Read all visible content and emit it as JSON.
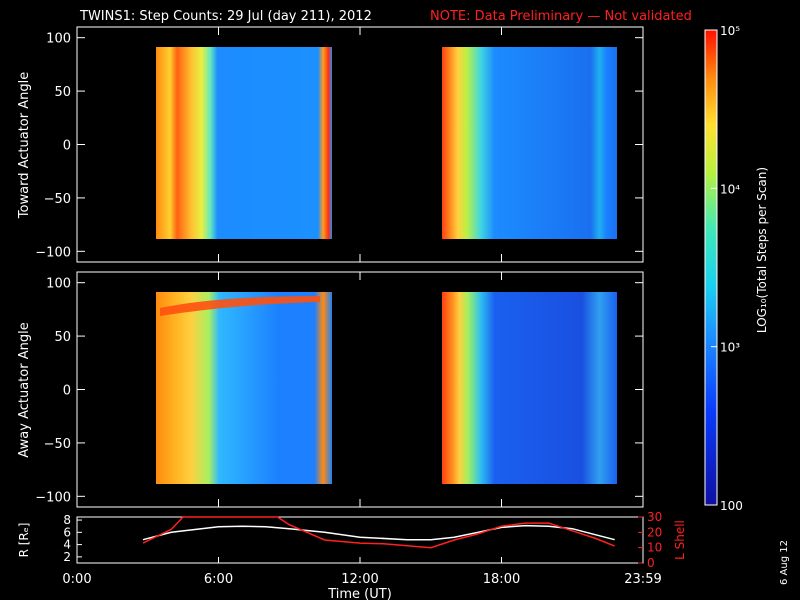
{
  "title": {
    "main": "TWINS1: Step Counts: 29 Jul (day 211), 2012",
    "note": "NOTE: Data Preliminary — Not validated"
  },
  "date_stamp": "6 Aug 12",
  "colors": {
    "background": "#000000",
    "axis": "#ffffff",
    "note": "#ff2020",
    "r_line": "#ffffff",
    "l_line": "#ff2020"
  },
  "chart_data": [
    {
      "type": "heatmap",
      "name": "toward",
      "ylabel": "Toward Actuator Angle",
      "ylim": [
        -110,
        110
      ],
      "yticks": [
        "100",
        "50",
        "0",
        "−50",
        "−100"
      ],
      "xlim_hours": [
        0,
        24
      ],
      "data_intervals_hours": [
        [
          2.8,
          10.5
        ],
        [
          15.0,
          22.8
        ]
      ],
      "angle_range": [
        -90,
        90
      ]
    },
    {
      "type": "heatmap",
      "name": "away",
      "ylabel": "Away Actuator Angle",
      "ylim": [
        -110,
        110
      ],
      "yticks": [
        "100",
        "50",
        "0",
        "−50",
        "−100"
      ],
      "xlim_hours": [
        0,
        24
      ],
      "data_intervals_hours": [
        [
          2.8,
          10.5
        ],
        [
          15.0,
          22.8
        ]
      ],
      "angle_range": [
        -90,
        90
      ]
    },
    {
      "type": "line",
      "name": "orbit",
      "ylabel_left": "R [Rₑ]",
      "ylabel_right": "L Shell",
      "yticks_left": [
        "8",
        "6",
        "4",
        "2"
      ],
      "yticks_right": [
        "30",
        "20",
        "10",
        "0"
      ],
      "ylim_left": [
        1,
        8.5
      ],
      "ylim_right": [
        0,
        30
      ],
      "xlabel": "Time (UT)",
      "xticks": [
        "0:00",
        "6:00",
        "12:00",
        "18:00",
        "23:59"
      ],
      "series": [
        {
          "axis": "left",
          "x": [
            2.8,
            4,
            6,
            7,
            8,
            9,
            10.5,
            12,
            14,
            15,
            16,
            17,
            18,
            19,
            20,
            21,
            22,
            22.8
          ],
          "y": [
            4.8,
            6.0,
            6.9,
            7.0,
            6.9,
            6.6,
            6.0,
            5.2,
            4.8,
            4.8,
            5.2,
            6.0,
            6.8,
            7.1,
            7.0,
            6.6,
            5.6,
            4.8
          ]
        },
        {
          "axis": "right",
          "x": [
            2.8,
            4,
            4.5,
            8.5,
            9,
            10.5,
            12,
            13,
            15,
            16,
            17,
            18,
            19,
            20,
            21,
            22,
            22.8
          ],
          "y": [
            13,
            22,
            30,
            30,
            25,
            15,
            13,
            12.5,
            10,
            15,
            19,
            24,
            26,
            26,
            21,
            16,
            11
          ]
        }
      ]
    },
    {
      "type": "heatmap",
      "name": "colorbar",
      "label": "LOG₁₀(Total Steps per Scan)",
      "ticks": [
        {
          "value": 100,
          "label": "100"
        },
        {
          "value": 1000,
          "label": "10³"
        },
        {
          "value": 10000,
          "label": "10⁴"
        },
        {
          "value": 100000,
          "label": "10⁵"
        }
      ],
      "range": [
        100,
        100000
      ],
      "scale": "log"
    }
  ]
}
